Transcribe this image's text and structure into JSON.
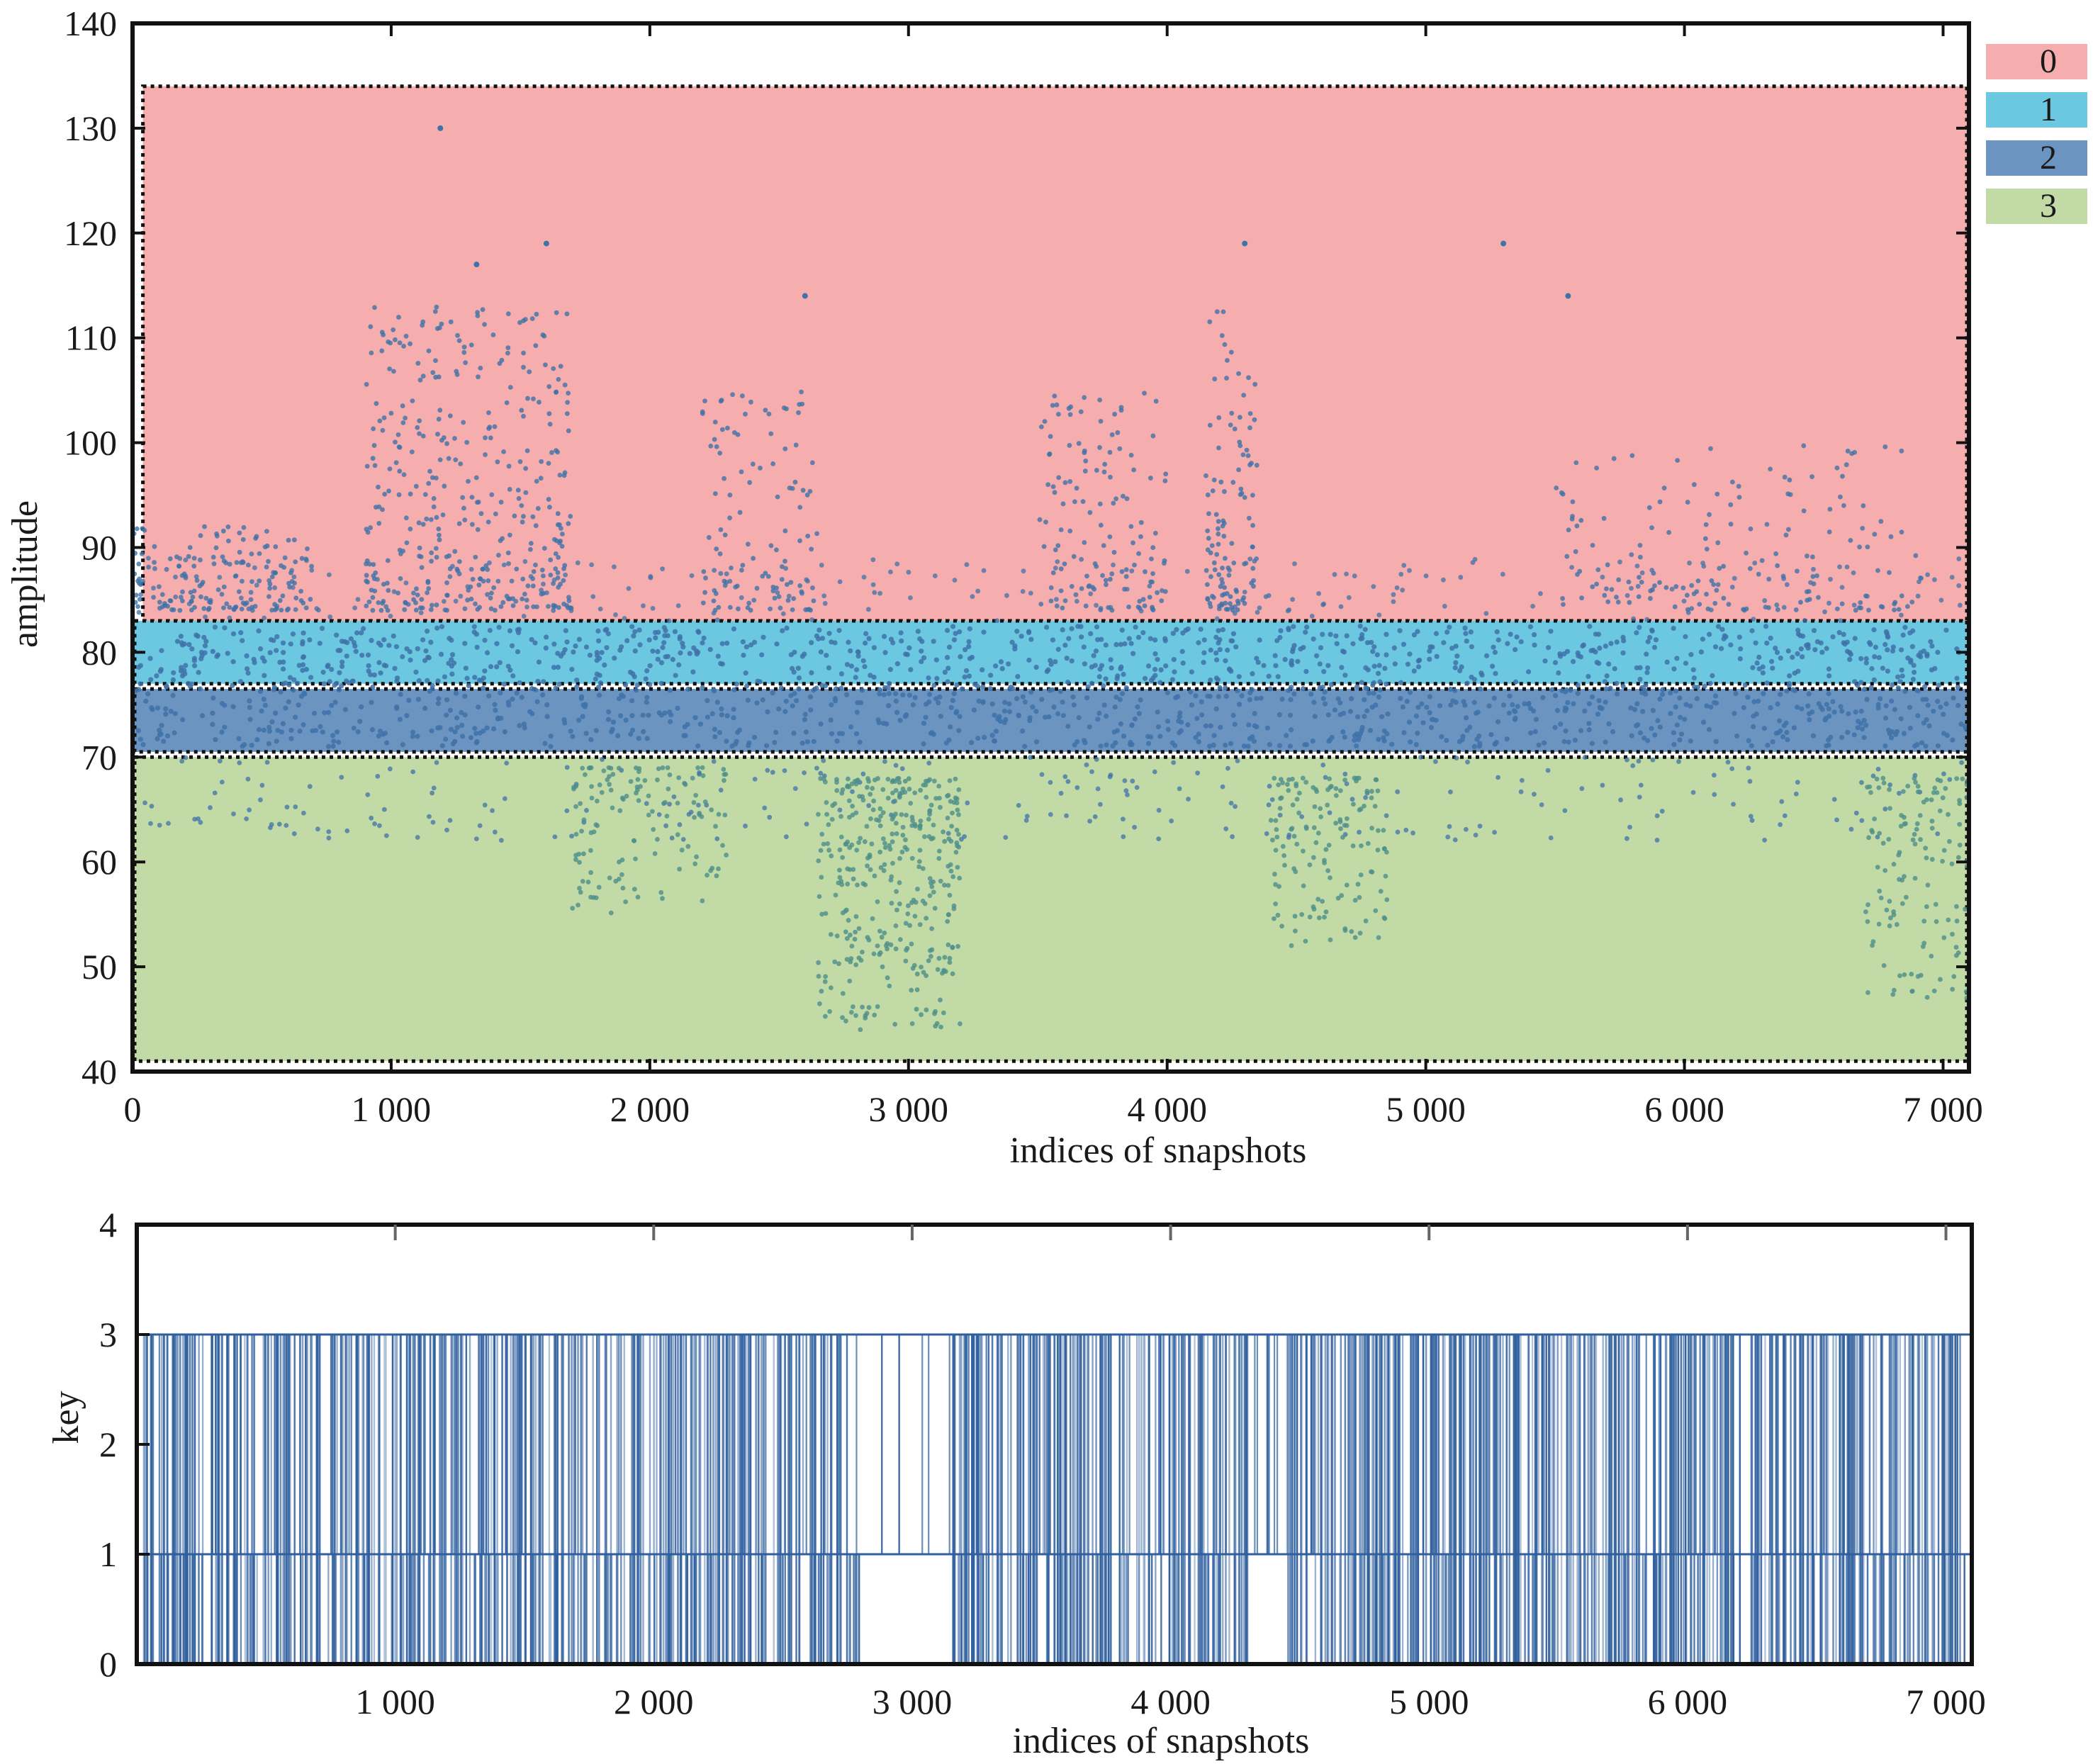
{
  "chart_data": [
    {
      "type": "scatter",
      "xlabel": "indices of snapshots",
      "ylabel": "amplitude",
      "xlim": [
        0,
        7100
      ],
      "ylim": [
        40,
        140
      ],
      "xticks": [
        0,
        1000,
        2000,
        3000,
        4000,
        5000,
        6000,
        7000
      ],
      "xtick_labels": [
        "0",
        "1 000",
        "2 000",
        "3 000",
        "4 000",
        "5 000",
        "6 000",
        "7 000"
      ],
      "yticks": [
        40,
        50,
        60,
        70,
        80,
        90,
        100,
        110,
        120,
        130,
        140
      ],
      "ytick_labels": [
        "40",
        "50",
        "60",
        "70",
        "80",
        "90",
        "100",
        "110",
        "120",
        "130",
        "140"
      ],
      "legend": {
        "placement": "outside-top-right",
        "entries": [
          {
            "label": "0",
            "color": "#f5adad"
          },
          {
            "label": "1",
            "color": "#6cc8e0"
          },
          {
            "label": "2",
            "color": "#6b95c0"
          },
          {
            "label": "3",
            "color": "#c2dba6"
          }
        ]
      },
      "regions": [
        {
          "key": "0",
          "y_range": [
            83,
            134
          ],
          "color": "#f5adad"
        },
        {
          "key": "1",
          "y_range": [
            77,
            83
          ],
          "color": "#6cc8e0"
        },
        {
          "key": "2",
          "y_range": [
            70.5,
            76.5
          ],
          "color": "#6b95c0"
        },
        {
          "key": "3",
          "y_range": [
            41,
            70
          ],
          "color": "#c2dba6"
        }
      ],
      "point_color": "#3f72a8",
      "bursts": [
        {
          "x_range": [
            0,
            700
          ],
          "y_range": [
            84,
            92
          ],
          "count": 160
        },
        {
          "x_range": [
            900,
            1700
          ],
          "y_range": [
            84,
            113
          ],
          "count": 380
        },
        {
          "x_range": [
            2200,
            2650
          ],
          "y_range": [
            84,
            105
          ],
          "count": 110
        },
        {
          "x_range": [
            3500,
            4000
          ],
          "y_range": [
            84,
            105
          ],
          "count": 130
        },
        {
          "x_range": [
            4150,
            4350
          ],
          "y_range": [
            84,
            113
          ],
          "count": 110
        },
        {
          "x_range": [
            5500,
            6900
          ],
          "y_range": [
            84,
            100
          ],
          "count": 170
        },
        {
          "x_range": [
            2650,
            3200
          ],
          "y_range": [
            44,
            68
          ],
          "count": 360
        },
        {
          "x_range": [
            4400,
            4850
          ],
          "y_range": [
            52,
            68
          ],
          "count": 140
        },
        {
          "x_range": [
            6700,
            7100
          ],
          "y_range": [
            47,
            68
          ],
          "count": 130
        },
        {
          "x_range": [
            1700,
            2300
          ],
          "y_range": [
            55,
            69
          ],
          "count": 130
        }
      ],
      "outliers": [
        {
          "x": 1190,
          "y": 130
        },
        {
          "x": 1600,
          "y": 119
        },
        {
          "x": 4300,
          "y": 119
        },
        {
          "x": 5300,
          "y": 119
        },
        {
          "x": 2600,
          "y": 114
        },
        {
          "x": 5550,
          "y": 114
        },
        {
          "x": 1330,
          "y": 117
        }
      ]
    },
    {
      "type": "line",
      "xlabel": "indices of snapshots",
      "ylabel": "key",
      "xlim": [
        0,
        7100
      ],
      "ylim": [
        0,
        4
      ],
      "xticks": [
        1000,
        2000,
        3000,
        4000,
        5000,
        6000,
        7000
      ],
      "xtick_labels": [
        "1 000",
        "2 000",
        "3 000",
        "4 000",
        "5 000",
        "6 000",
        "7 000"
      ],
      "yticks": [
        0,
        1,
        2,
        3,
        4
      ],
      "ytick_labels": [
        "0",
        "1",
        "2",
        "3",
        "4"
      ],
      "line_color": "#2f5f9e",
      "key_values": [
        0,
        1,
        2,
        3
      ],
      "gaps_key3": [
        [
          2750,
          3150
        ],
        [
          4300,
          4450
        ]
      ],
      "gaps_key0": [
        [
          2800,
          3150
        ],
        [
          4300,
          4450
        ]
      ]
    }
  ]
}
